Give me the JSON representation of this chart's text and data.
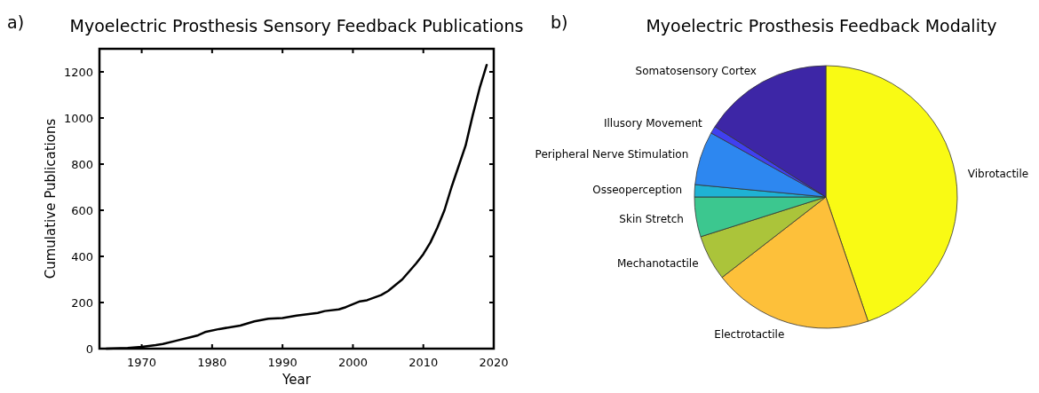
{
  "chart_data": [
    {
      "type": "line",
      "title": "Myoelectric Prosthesis Sensory Feedback Publications",
      "xlabel": "Year",
      "ylabel": "Cumulative Publications",
      "annotations": [
        "a)"
      ],
      "x": [
        1965,
        1968,
        1970,
        1972,
        1973,
        1975,
        1977,
        1978,
        1979,
        1981,
        1984,
        1986,
        1988,
        1990,
        1992,
        1995,
        1996,
        1998,
        1999,
        2001,
        2002,
        2004,
        2005,
        2007,
        2009,
        2010,
        2011,
        2012,
        2013,
        2014,
        2016,
        2017,
        2018,
        2019
      ],
      "series": [
        {
          "color": "#000000",
          "values": [
            0,
            3,
            8,
            15,
            20,
            35,
            50,
            58,
            72,
            85,
            100,
            118,
            130,
            133,
            143,
            155,
            163,
            170,
            180,
            205,
            210,
            232,
            250,
            300,
            370,
            410,
            460,
            525,
            600,
            700,
            880,
            1010,
            1130,
            1230
          ]
        }
      ],
      "xlim": [
        1964,
        2020
      ],
      "xticks": [
        1970,
        1980,
        1990,
        2000,
        2010,
        2020
      ],
      "ylim": [
        0,
        1300
      ],
      "yticks": [
        0,
        200,
        400,
        600,
        800,
        1000,
        1200
      ],
      "grid": false,
      "marker": "none",
      "line_style": "solid"
    },
    {
      "type": "pie",
      "title": "Myoelectric Prosthesis Feedback Modality",
      "annotations": [
        "b)"
      ],
      "categories": [
        "Vibrotactile",
        "Electrotactile",
        "Mechanotactile",
        "Skin Stretch",
        "Osseoperception",
        "Peripheral Nerve Stimulation",
        "Illusory Movement",
        "Somatosensory Cortex"
      ],
      "values": [
        44.8,
        19.7,
        5.6,
        4.9,
        1.5,
        6.6,
        0.9,
        16
      ],
      "colors": [
        "#f9fa14",
        "#fdc03a",
        "#abc43a",
        "#3cc78f",
        "#1fb2d3",
        "#2d87f0",
        "#4040f0",
        "#3d26a6"
      ]
    }
  ]
}
